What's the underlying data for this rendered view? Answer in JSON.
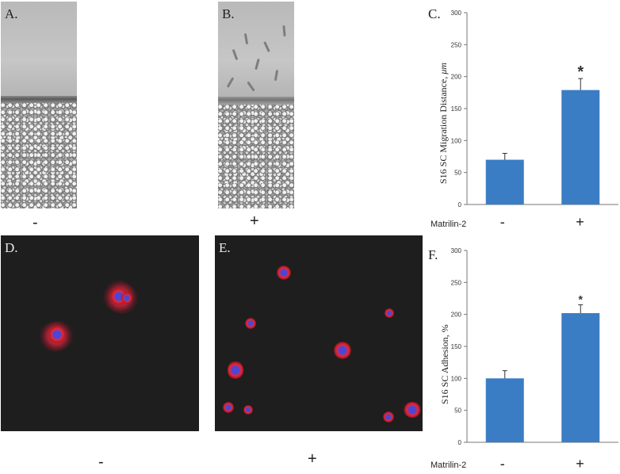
{
  "panels": {
    "A": {
      "letter": "A.",
      "condition": "-"
    },
    "B": {
      "letter": "B.",
      "condition": "+"
    },
    "D": {
      "letter": "D.",
      "condition": "-"
    },
    "E": {
      "letter": "E.",
      "condition": "+"
    }
  },
  "chart_data": [
    {
      "panel": "C.",
      "type": "bar",
      "categories": [
        "-",
        "+"
      ],
      "values": [
        70,
        179
      ],
      "errors": [
        10,
        18
      ],
      "significance": [
        "",
        "*"
      ],
      "xlabel": "Matrilin-2",
      "ylabel": "S16 SC Migration Distance,",
      "ylabel_unit": "μm",
      "ylim": [
        0,
        300
      ],
      "yticks": [
        0,
        50,
        100,
        150,
        200,
        250,
        300
      ],
      "color": "#3a7dc4",
      "grid": false
    },
    {
      "panel": "F.",
      "type": "bar",
      "categories": [
        "-",
        "+"
      ],
      "values": [
        100,
        202
      ],
      "errors": [
        12,
        13
      ],
      "significance": [
        "",
        "*"
      ],
      "xlabel": "Matrilin-2",
      "ylabel": "S16 SC Adhesion, %",
      "ylim": [
        0,
        300
      ],
      "yticks": [
        0,
        50,
        100,
        150,
        200,
        250,
        300
      ],
      "color": "#3a7dc4",
      "grid": false
    }
  ]
}
